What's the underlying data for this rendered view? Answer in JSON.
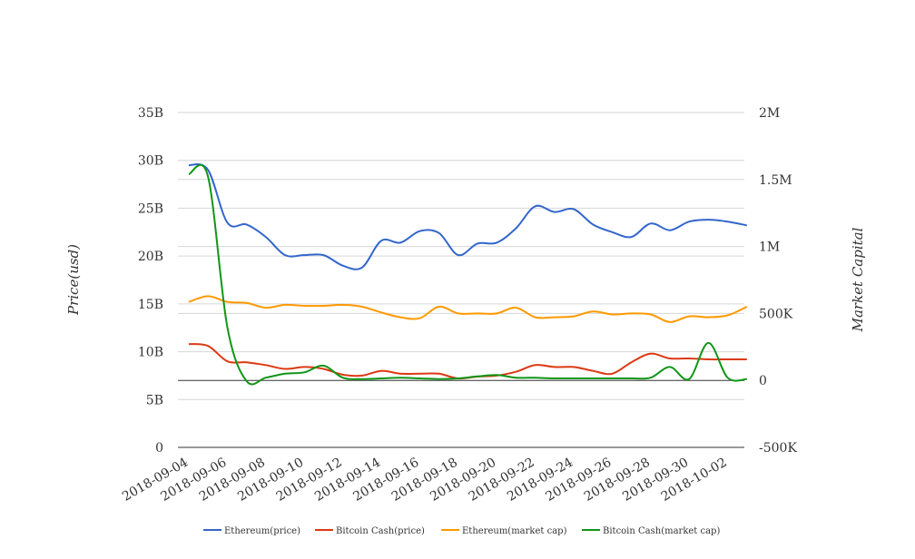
{
  "chart_data": {
    "type": "line",
    "title": "",
    "y_left": {
      "label": "Price(usd)",
      "ticks": [
        "0",
        "5B",
        "10B",
        "15B",
        "20B",
        "25B",
        "30B",
        "35B"
      ],
      "range": [
        0,
        35
      ]
    },
    "y_right": {
      "label": "Market Capital",
      "ticks": [
        "-500K",
        "0",
        "500K",
        "1M",
        "1.5M",
        "2M"
      ],
      "range": [
        -500000,
        2000000
      ]
    },
    "x_ticks": [
      "2018-09-04",
      "2018-09-06",
      "2018-09-08",
      "2018-09-10",
      "2018-09-12",
      "2018-09-14",
      "2018-09-16",
      "2018-09-18",
      "2018-09-20",
      "2018-09-22",
      "2018-09-24",
      "2018-09-26",
      "2018-09-28",
      "2018-09-30",
      "2018-10-02"
    ],
    "x": [
      "2018-09-04",
      "2018-09-05",
      "2018-09-06",
      "2018-09-07",
      "2018-09-08",
      "2018-09-09",
      "2018-09-10",
      "2018-09-11",
      "2018-09-12",
      "2018-09-13",
      "2018-09-14",
      "2018-09-15",
      "2018-09-16",
      "2018-09-17",
      "2018-09-18",
      "2018-09-19",
      "2018-09-20",
      "2018-09-21",
      "2018-09-22",
      "2018-09-23",
      "2018-09-24",
      "2018-09-25",
      "2018-09-26",
      "2018-09-27",
      "2018-09-28",
      "2018-09-29",
      "2018-09-30",
      "2018-10-01",
      "2018-10-02",
      "2018-10-03"
    ],
    "series": [
      {
        "name": "Ethereum(price)",
        "axis": "left",
        "color": "#3366cc",
        "values": [
          29.5,
          29.0,
          23.5,
          23.3,
          22.0,
          20.1,
          20.1,
          20.1,
          19.0,
          18.8,
          21.6,
          21.4,
          22.6,
          22.4,
          20.1,
          21.3,
          21.4,
          22.9,
          25.2,
          24.6,
          24.9,
          23.3,
          22.5,
          22.0,
          23.4,
          22.7,
          23.6,
          23.8,
          23.6,
          23.2
        ]
      },
      {
        "name": "Bitcoin Cash(price)",
        "axis": "left",
        "color": "#dc3912",
        "values": [
          10.8,
          10.6,
          9.0,
          8.9,
          8.6,
          8.2,
          8.4,
          8.2,
          7.6,
          7.5,
          8.0,
          7.7,
          7.7,
          7.7,
          7.2,
          7.4,
          7.5,
          7.9,
          8.6,
          8.4,
          8.4,
          8.0,
          7.7,
          8.9,
          9.8,
          9.3,
          9.3,
          9.2,
          9.2,
          9.2
        ]
      },
      {
        "name": "Ethereum(market cap)",
        "axis": "left",
        "color": "#ff9900",
        "values": [
          15.2,
          15.8,
          15.2,
          15.1,
          14.6,
          14.9,
          14.8,
          14.8,
          14.9,
          14.7,
          14.1,
          13.6,
          13.5,
          14.7,
          14.0,
          14.0,
          14.0,
          14.6,
          13.6,
          13.6,
          13.7,
          14.2,
          13.9,
          14.0,
          13.9,
          13.1,
          13.7,
          13.6,
          13.8,
          14.7
        ]
      },
      {
        "name": "Bitcoin Cash(market cap)",
        "axis": "right",
        "color": "#109618",
        "values": [
          1540000,
          1520000,
          400000,
          -5000,
          20000,
          50000,
          60000,
          110000,
          20000,
          10000,
          15000,
          20000,
          15000,
          10000,
          15000,
          30000,
          40000,
          20000,
          20000,
          15000,
          15000,
          15000,
          15000,
          15000,
          20000,
          100000,
          10000,
          280000,
          20000,
          10000
        ]
      }
    ],
    "legend_position": "bottom-center",
    "grid": true
  }
}
